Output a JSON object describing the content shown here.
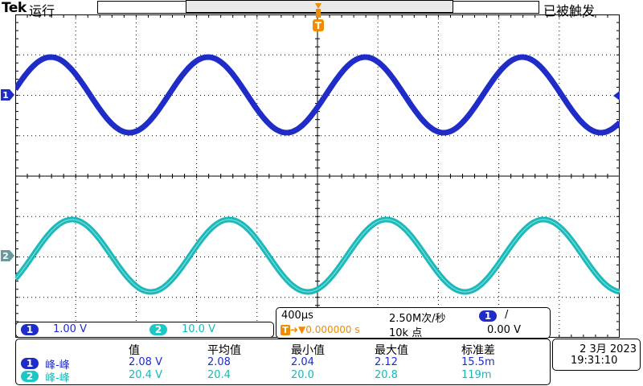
{
  "header": {
    "brand": "Tek",
    "run_state": "运行",
    "trigger_state": "已被触发"
  },
  "markers": {
    "ch1_marker": "1",
    "ch2_marker": "2",
    "trigger_marker": "T"
  },
  "channels": [
    {
      "id": "1",
      "scale": "1.00 V",
      "color": "#1f2cc8"
    },
    {
      "id": "2",
      "scale": "10.0 V",
      "color": "#1fc6c6"
    }
  ],
  "acquisition": {
    "timebase": "400µs",
    "sample_rate": "2.50M次/秒",
    "trigger_source": "1",
    "trigger_slope": "/",
    "trigger_position": "0.000000 s",
    "record_length": "10k 点",
    "trigger_level": "0.00 V"
  },
  "measurements": {
    "headers": [
      "值",
      "平均值",
      "最小值",
      "最大值",
      "标准差"
    ],
    "rows": [
      {
        "channel": "1",
        "type": "峰-峰",
        "value": "2.08 V",
        "mean": "2.08",
        "min": "2.04",
        "max": "2.12",
        "std": "15.5m"
      },
      {
        "channel": "2",
        "type": "峰-峰",
        "value": "20.4 V",
        "mean": "20.4",
        "min": "20.0",
        "max": "20.8",
        "std": "119m"
      }
    ]
  },
  "datetime": {
    "date": "2 3月 2023",
    "time": "19:31:10"
  },
  "waveforms": {
    "ch1": {
      "cycles": 4,
      "period_divisions": 2.6
    },
    "ch2": {
      "cycles": 4,
      "period_divisions": 2.6
    }
  }
}
